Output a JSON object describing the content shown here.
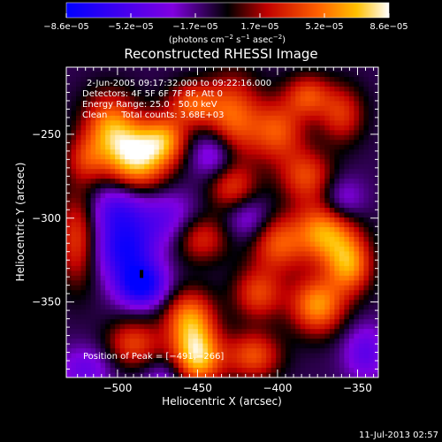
{
  "chart_data": {
    "type": "heatmap",
    "title": "Reconstructed RHESSI Image",
    "xlabel": "Heliocentric X (arcsec)",
    "ylabel": "Heliocentric Y (arcsec)",
    "xlim": [
      -532,
      -337
    ],
    "ylim": [
      -395,
      -210
    ],
    "xticks": [
      -500,
      -450,
      -400,
      -350
    ],
    "xtick_labels": [
      "−500",
      "−450",
      "−400",
      "−350"
    ],
    "yticks": [
      -250,
      -300,
      -350
    ],
    "ytick_labels": [
      "−250",
      "−300",
      "−350"
    ],
    "colorbar": {
      "ticks": [
        "−8.6e−05",
        "−5.2e−05",
        "−1.7e−05",
        "1.7e−05",
        "5.2e−05",
        "8.6e−05"
      ],
      "unit_parts": [
        "(photons cm",
        "−2",
        " s",
        "−1",
        " asec",
        "−2",
        ")"
      ],
      "range": [
        -8.6e-05,
        8.6e-05
      ]
    },
    "annotations": {
      "time": "2-Jun-2005 09:17:32.000 to 09:22:16.000",
      "detectors": "Detectors: 4F 5F 6F 7F 8F, Att 0",
      "energy": "Energy Range: 25.0 - 50.0 keV",
      "clean": "Clean     Total counts: 3.68E+03",
      "peak": "Position of Peak = [−491,−266]"
    },
    "peak": [
      -491,
      -266
    ],
    "sources": [
      {
        "x": -488,
        "y": -264,
        "amp": 1.0,
        "sx": 14,
        "sy": 14
      },
      {
        "x": -505,
        "y": -245,
        "amp": 0.7,
        "sx": 12,
        "sy": 14
      },
      {
        "x": -470,
        "y": -253,
        "amp": 0.6,
        "sx": 10,
        "sy": 10
      },
      {
        "x": -453,
        "y": -232,
        "amp": 0.6,
        "sx": 11,
        "sy": 9
      },
      {
        "x": -428,
        "y": -240,
        "amp": 0.65,
        "sx": 12,
        "sy": 18
      },
      {
        "x": -400,
        "y": -248,
        "amp": 0.6,
        "sx": 12,
        "sy": 13
      },
      {
        "x": -381,
        "y": -227,
        "amp": 0.55,
        "sx": 10,
        "sy": 9
      },
      {
        "x": -360,
        "y": -238,
        "amp": 0.5,
        "sx": 10,
        "sy": 12
      },
      {
        "x": -428,
        "y": -282,
        "amp": 0.5,
        "sx": 11,
        "sy": 10
      },
      {
        "x": -382,
        "y": -275,
        "amp": 0.55,
        "sx": 12,
        "sy": 11
      },
      {
        "x": -400,
        "y": -315,
        "amp": 0.6,
        "sx": 12,
        "sy": 12
      },
      {
        "x": -370,
        "y": -308,
        "amp": 0.85,
        "sx": 13,
        "sy": 13
      },
      {
        "x": -355,
        "y": -328,
        "amp": 0.75,
        "sx": 10,
        "sy": 12
      },
      {
        "x": -375,
        "y": -352,
        "amp": 0.8,
        "sx": 12,
        "sy": 12
      },
      {
        "x": -412,
        "y": -345,
        "amp": 0.55,
        "sx": 11,
        "sy": 11
      },
      {
        "x": -448,
        "y": -312,
        "amp": 0.5,
        "sx": 12,
        "sy": 10
      },
      {
        "x": -455,
        "y": -360,
        "amp": 0.75,
        "sx": 11,
        "sy": 12
      },
      {
        "x": -450,
        "y": -383,
        "amp": 0.95,
        "sx": 11,
        "sy": 12
      },
      {
        "x": -415,
        "y": -382,
        "amp": 0.6,
        "sx": 12,
        "sy": 10
      },
      {
        "x": -490,
        "y": -375,
        "amp": 0.55,
        "sx": 12,
        "sy": 10
      },
      {
        "x": -525,
        "y": -312,
        "amp": 0.55,
        "sx": 9,
        "sy": 20
      },
      {
        "x": -520,
        "y": -265,
        "amp": 0.4,
        "sx": 9,
        "sy": 10
      },
      {
        "x": -495,
        "y": -320,
        "amp": -0.7,
        "sx": 13,
        "sy": 12
      },
      {
        "x": -485,
        "y": -340,
        "amp": -0.85,
        "sx": 11,
        "sy": 9
      },
      {
        "x": -500,
        "y": -295,
        "amp": -0.55,
        "sx": 12,
        "sy": 12
      },
      {
        "x": -470,
        "y": -300,
        "amp": -0.4,
        "sx": 14,
        "sy": 12
      },
      {
        "x": -440,
        "y": -262,
        "amp": -0.45,
        "sx": 10,
        "sy": 10
      },
      {
        "x": -418,
        "y": -300,
        "amp": -0.35,
        "sx": 10,
        "sy": 10
      },
      {
        "x": -360,
        "y": -290,
        "amp": -0.4,
        "sx": 10,
        "sy": 10
      },
      {
        "x": -345,
        "y": -380,
        "amp": -0.4,
        "sx": 10,
        "sy": 12
      },
      {
        "x": -470,
        "y": -395,
        "amp": -0.3,
        "sx": 10,
        "sy": 8
      },
      {
        "x": -520,
        "y": -390,
        "amp": -0.35,
        "sx": 12,
        "sy": 10
      }
    ],
    "grid": false
  },
  "footer": {
    "timestamp": "11-Jul-2013 02:57"
  },
  "colors": {
    "background": "#000000",
    "text": "#ffffff"
  }
}
